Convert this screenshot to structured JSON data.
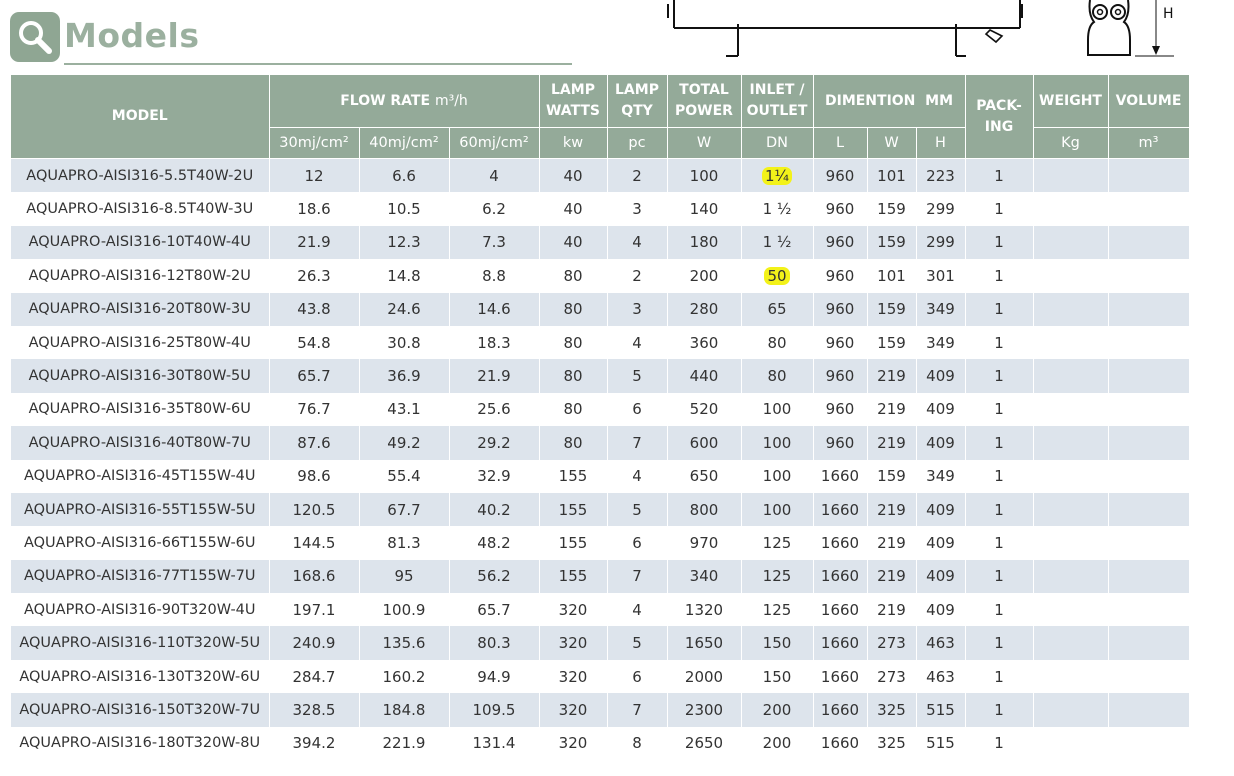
{
  "title": "Models",
  "diagram": {
    "h_label": "H"
  },
  "table": {
    "headers": {
      "model": "MODEL",
      "flow_rate": "FLOW RATE",
      "flow_rate_unit": "m³/h",
      "lamp_watts": "LAMP WATTS",
      "lamp_qty": "LAMP QTY",
      "total_power": "TOTAL POWER",
      "inlet_outlet": "INLET / OUTLET",
      "dimention": "DIMENTION  MM",
      "packing": "PACK- ING",
      "weight": "WEIGHT",
      "volume": "VOLUME"
    },
    "subheaders": {
      "flow1": "30mj/cm²",
      "flow2": "40mj/cm²",
      "flow3": "60mj/cm²",
      "lamp_watts": "kw",
      "lamp_qty": "pc",
      "total_power": "W",
      "inlet_outlet": "DN",
      "l": "L",
      "w": "W",
      "h": "H",
      "weight": "Kg",
      "volume": "m³"
    },
    "rows": [
      {
        "model": "AQUAPRO-AISI316-5.5T40W-2U",
        "f30": "12",
        "f40": "6.6",
        "f60": "4",
        "watts": "40",
        "qty": "2",
        "power": "100",
        "dn": "1¼",
        "l": "960",
        "w": "101",
        "h": "223",
        "packing": "1",
        "weight": "",
        "volume": ""
      },
      {
        "model": "AQUAPRO-AISI316-8.5T40W-3U",
        "f30": "18.6",
        "f40": "10.5",
        "f60": "6.2",
        "watts": "40",
        "qty": "3",
        "power": "140",
        "dn": "1 ½",
        "l": "960",
        "w": "159",
        "h": "299",
        "packing": "1",
        "weight": "",
        "volume": ""
      },
      {
        "model": "AQUAPRO-AISI316-10T40W-4U",
        "f30": "21.9",
        "f40": "12.3",
        "f60": "7.3",
        "watts": "40",
        "qty": "4",
        "power": "180",
        "dn": "1 ½",
        "l": "960",
        "w": "159",
        "h": "299",
        "packing": "1",
        "weight": "",
        "volume": ""
      },
      {
        "model": "AQUAPRO-AISI316-12T80W-2U",
        "f30": "26.3",
        "f40": "14.8",
        "f60": "8.8",
        "watts": "80",
        "qty": "2",
        "power": "200",
        "dn": "50",
        "l": "960",
        "w": "101",
        "h": "301",
        "packing": "1",
        "weight": "",
        "volume": ""
      },
      {
        "model": "AQUAPRO-AISI316-20T80W-3U",
        "f30": "43.8",
        "f40": "24.6",
        "f60": "14.6",
        "watts": "80",
        "qty": "3",
        "power": "280",
        "dn": "65",
        "l": "960",
        "w": "159",
        "h": "349",
        "packing": "1",
        "weight": "",
        "volume": ""
      },
      {
        "model": "AQUAPRO-AISI316-25T80W-4U",
        "f30": "54.8",
        "f40": "30.8",
        "f60": "18.3",
        "watts": "80",
        "qty": "4",
        "power": "360",
        "dn": "80",
        "l": "960",
        "w": "159",
        "h": "349",
        "packing": "1",
        "weight": "",
        "volume": ""
      },
      {
        "model": "AQUAPRO-AISI316-30T80W-5U",
        "f30": "65.7",
        "f40": "36.9",
        "f60": "21.9",
        "watts": "80",
        "qty": "5",
        "power": "440",
        "dn": "80",
        "l": "960",
        "w": "219",
        "h": "409",
        "packing": "1",
        "weight": "",
        "volume": ""
      },
      {
        "model": "AQUAPRO-AISI316-35T80W-6U",
        "f30": "76.7",
        "f40": "43.1",
        "f60": "25.6",
        "watts": "80",
        "qty": "6",
        "power": "520",
        "dn": "100",
        "l": "960",
        "w": "219",
        "h": "409",
        "packing": "1",
        "weight": "",
        "volume": ""
      },
      {
        "model": "AQUAPRO-AISI316-40T80W-7U",
        "f30": "87.6",
        "f40": "49.2",
        "f60": "29.2",
        "watts": "80",
        "qty": "7",
        "power": "600",
        "dn": "100",
        "l": "960",
        "w": "219",
        "h": "409",
        "packing": "1",
        "weight": "",
        "volume": ""
      },
      {
        "model": "AQUAPRO-AISI316-45T155W-4U",
        "f30": "98.6",
        "f40": "55.4",
        "f60": "32.9",
        "watts": "155",
        "qty": "4",
        "power": "650",
        "dn": "100",
        "l": "1660",
        "w": "159",
        "h": "349",
        "packing": "1",
        "weight": "",
        "volume": ""
      },
      {
        "model": "AQUAPRO-AISI316-55T155W-5U",
        "f30": "120.5",
        "f40": "67.7",
        "f60": "40.2",
        "watts": "155",
        "qty": "5",
        "power": "800",
        "dn": "100",
        "l": "1660",
        "w": "219",
        "h": "409",
        "packing": "1",
        "weight": "",
        "volume": ""
      },
      {
        "model": "AQUAPRO-AISI316-66T155W-6U",
        "f30": "144.5",
        "f40": "81.3",
        "f60": "48.2",
        "watts": "155",
        "qty": "6",
        "power": "970",
        "dn": "125",
        "l": "1660",
        "w": "219",
        "h": "409",
        "packing": "1",
        "weight": "",
        "volume": ""
      },
      {
        "model": "AQUAPRO-AISI316-77T155W-7U",
        "f30": "168.6",
        "f40": "95",
        "f60": "56.2",
        "watts": "155",
        "qty": "7",
        "power": "340",
        "dn": "125",
        "l": "1660",
        "w": "219",
        "h": "409",
        "packing": "1",
        "weight": "",
        "volume": ""
      },
      {
        "model": "AQUAPRO-AISI316-90T320W-4U",
        "f30": "197.1",
        "f40": "100.9",
        "f60": "65.7",
        "watts": "320",
        "qty": "4",
        "power": "1320",
        "dn": "125",
        "l": "1660",
        "w": "219",
        "h": "409",
        "packing": "1",
        "weight": "",
        "volume": ""
      },
      {
        "model": "AQUAPRO-AISI316-110T320W-5U",
        "f30": "240.9",
        "f40": "135.6",
        "f60": "80.3",
        "watts": "320",
        "qty": "5",
        "power": "1650",
        "dn": "150",
        "l": "1660",
        "w": "273",
        "h": "463",
        "packing": "1",
        "weight": "",
        "volume": ""
      },
      {
        "model": "AQUAPRO-AISI316-130T320W-6U",
        "f30": "284.7",
        "f40": "160.2",
        "f60": "94.9",
        "watts": "320",
        "qty": "6",
        "power": "2000",
        "dn": "150",
        "l": "1660",
        "w": "273",
        "h": "463",
        "packing": "1",
        "weight": "",
        "volume": ""
      },
      {
        "model": "AQUAPRO-AISI316-150T320W-7U",
        "f30": "328.5",
        "f40": "184.8",
        "f60": "109.5",
        "watts": "320",
        "qty": "7",
        "power": "2300",
        "dn": "200",
        "l": "1660",
        "w": "325",
        "h": "515",
        "packing": "1",
        "weight": "",
        "volume": ""
      },
      {
        "model": "AQUAPRO-AISI316-180T320W-8U",
        "f30": "394.2",
        "f40": "221.9",
        "f60": "131.4",
        "watts": "320",
        "qty": "8",
        "power": "2650",
        "dn": "200",
        "l": "1660",
        "w": "325",
        "h": "515",
        "packing": "1",
        "weight": "",
        "volume": ""
      }
    ],
    "highlighted_dn_rows": [
      0,
      3
    ],
    "colors": {
      "header_bg": "#94aa99",
      "stripe_bg": "#dde4ec",
      "highlight": "#f3f219",
      "title": "#9bb09f"
    }
  }
}
